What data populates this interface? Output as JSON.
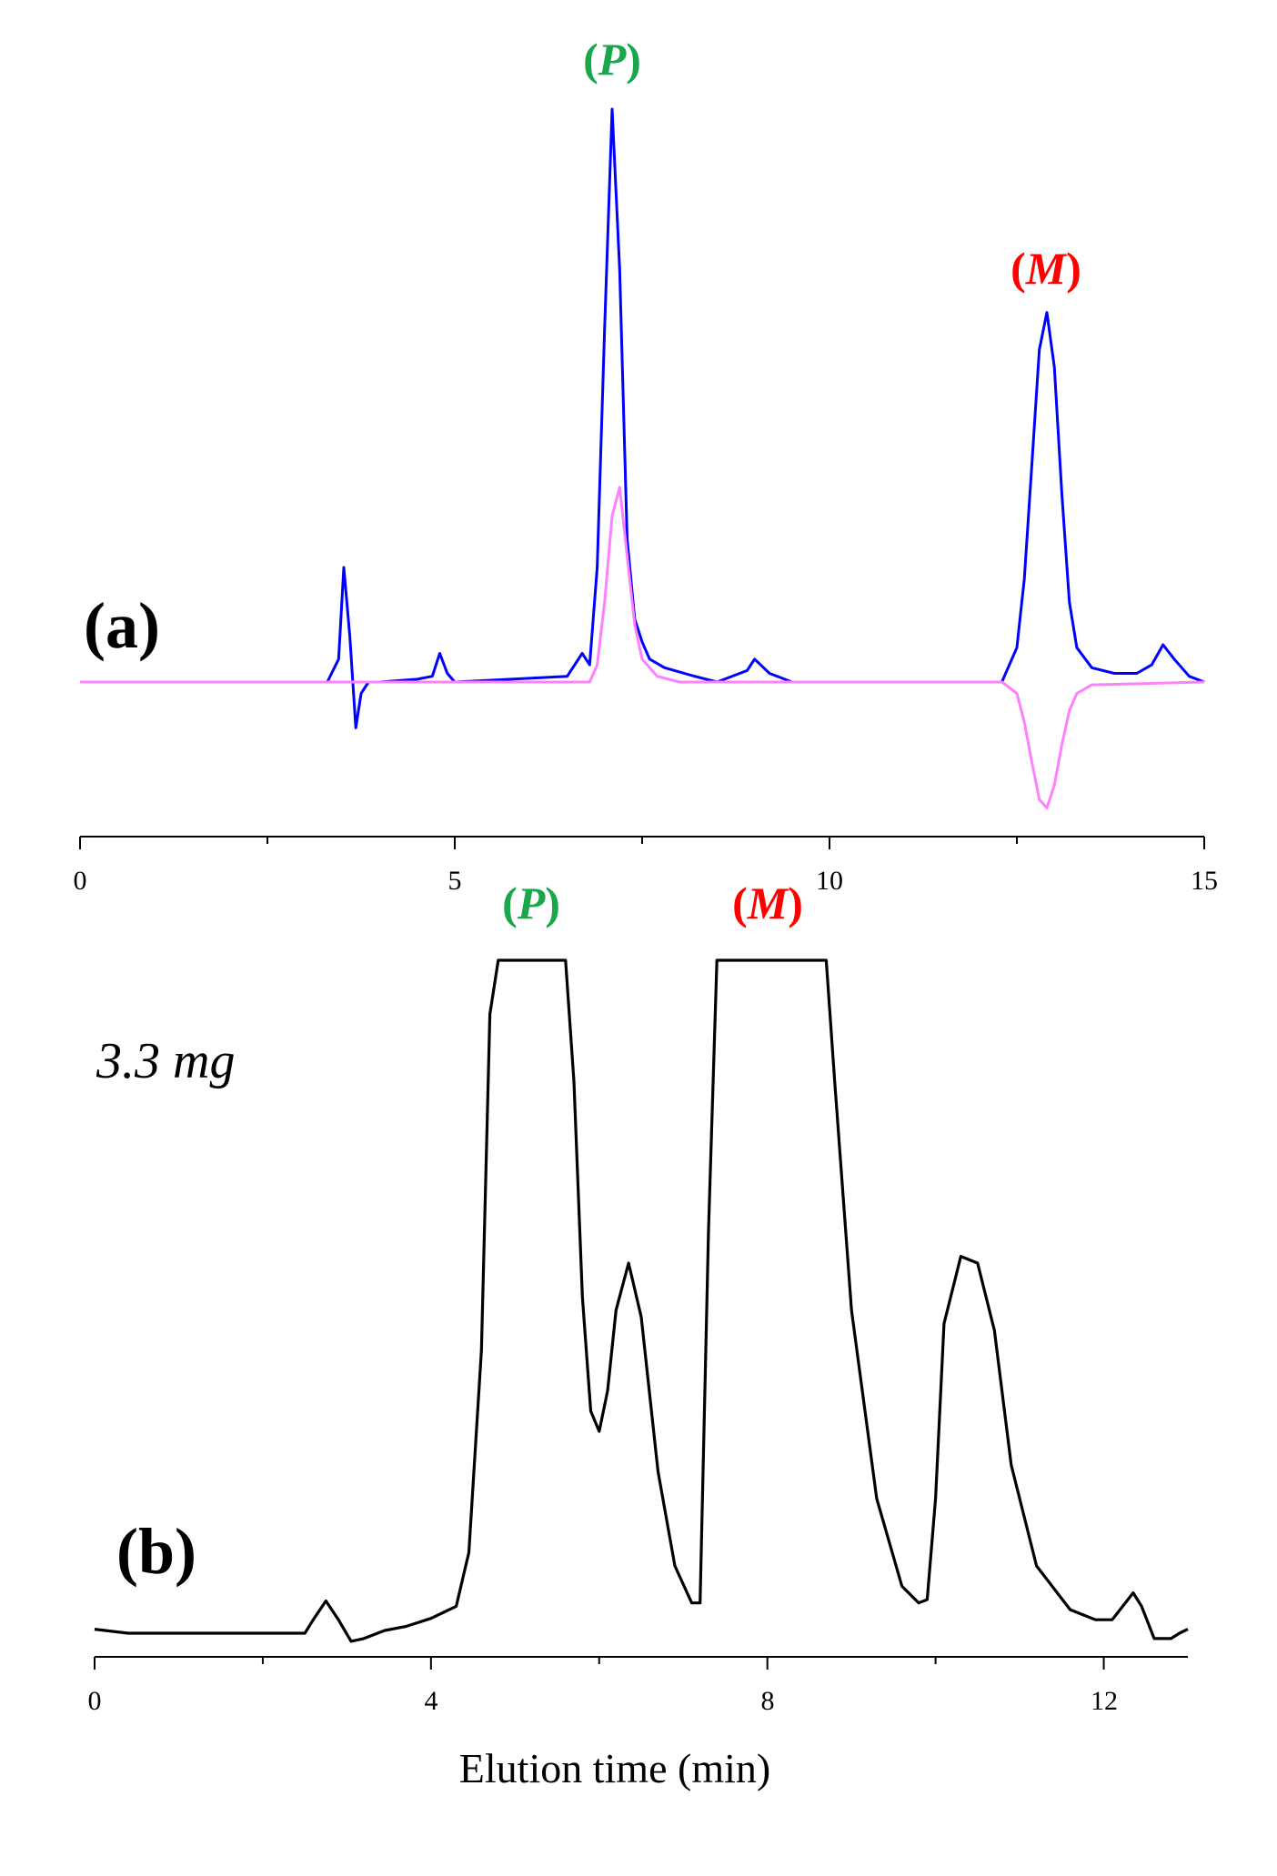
{
  "chart_data": [
    {
      "type": "line",
      "panel_label": "(a)",
      "xlim": [
        0,
        15
      ],
      "x_ticks": [
        "0",
        "5",
        "10",
        "15"
      ],
      "xlabel": "",
      "ylabel": "",
      "colors": {
        "series_1": "#0000ff",
        "series_2": "#ff80ff",
        "peak_P": "#1aa64a",
        "peak_M": "#ff0000"
      },
      "peaks": [
        {
          "open": "(",
          "letter": "P",
          "close": ")",
          "x": 7.1
        },
        {
          "open": "(",
          "letter": "M",
          "close": ")",
          "x": 12.9
        }
      ],
      "series": [
        {
          "color": "#0000ff",
          "x": [
            0,
            3.3,
            3.45,
            3.52,
            3.6,
            3.68,
            3.75,
            3.85,
            4.0,
            4.5,
            4.7,
            4.8,
            4.9,
            5.0,
            6.5,
            6.7,
            6.8,
            6.9,
            7.0,
            7.1,
            7.2,
            7.3,
            7.4,
            7.5,
            7.6,
            7.8,
            8.2,
            8.5,
            8.9,
            9.0,
            9.2,
            9.5,
            12.3,
            12.5,
            12.6,
            12.7,
            12.8,
            12.9,
            13.0,
            13.1,
            13.2,
            13.3,
            13.5,
            13.8,
            14.1,
            14.3,
            14.45,
            14.6,
            14.8,
            15.0
          ],
          "y": [
            0,
            0,
            0.04,
            0.2,
            0.08,
            -0.08,
            -0.02,
            0.0,
            0,
            0.005,
            0.01,
            0.05,
            0.015,
            0,
            0.01,
            0.05,
            0.03,
            0.2,
            0.62,
            1.0,
            0.72,
            0.25,
            0.11,
            0.07,
            0.04,
            0.025,
            0.01,
            0.0,
            0.02,
            0.04,
            0.015,
            0,
            0,
            0.06,
            0.18,
            0.38,
            0.58,
            0.645,
            0.55,
            0.33,
            0.14,
            0.06,
            0.025,
            0.015,
            0.015,
            0.03,
            0.065,
            0.04,
            0.01,
            0
          ]
        },
        {
          "color": "#ff80ff",
          "x": [
            0,
            6.8,
            6.9,
            7.0,
            7.1,
            7.2,
            7.3,
            7.4,
            7.5,
            7.7,
            8.0,
            12.3,
            12.5,
            12.6,
            12.7,
            12.8,
            12.9,
            13.0,
            13.1,
            13.2,
            13.3,
            13.5,
            15.0
          ],
          "y": [
            0,
            0,
            0.03,
            0.14,
            0.29,
            0.34,
            0.22,
            0.1,
            0.04,
            0.01,
            0,
            0,
            -0.02,
            -0.07,
            -0.14,
            -0.205,
            -0.22,
            -0.18,
            -0.11,
            -0.05,
            -0.02,
            -0.005,
            0
          ]
        }
      ]
    },
    {
      "type": "line",
      "panel_label": "(b)",
      "note": "3.3 mg",
      "xlim": [
        0,
        13
      ],
      "x_ticks": [
        "0",
        "4",
        "8",
        "12"
      ],
      "xlabel": "Elution time (min)",
      "ylabel": "",
      "colors": {
        "series_1": "#000000",
        "peak_P": "#1aa64a",
        "peak_M": "#ff0000"
      },
      "peaks": [
        {
          "open": "(",
          "letter": "P",
          "close": ")",
          "x": 5.0
        },
        {
          "open": "(",
          "letter": "M",
          "close": ")",
          "x": 8.0
        }
      ],
      "series": [
        {
          "color": "#000000",
          "x": [
            0,
            0.4,
            2.5,
            2.6,
            2.75,
            2.9,
            3.05,
            3.2,
            3.45,
            3.7,
            4.0,
            4.3,
            4.45,
            4.6,
            4.7,
            4.8,
            4.9,
            5.6,
            5.7,
            5.8,
            5.9,
            6.0,
            6.1,
            6.2,
            6.35,
            6.5,
            6.7,
            6.9,
            7.1,
            7.2,
            7.3,
            7.4,
            8.7,
            8.8,
            9.0,
            9.3,
            9.6,
            9.8,
            9.9,
            10.0,
            10.1,
            10.3,
            10.5,
            10.7,
            10.9,
            11.2,
            11.6,
            11.9,
            12.1,
            12.35,
            12.45,
            12.6,
            12.8,
            12.9,
            13.0
          ],
          "y": [
            0.006,
            0,
            0,
            0.02,
            0.048,
            0.02,
            -0.012,
            -0.008,
            0.004,
            0.01,
            0.022,
            0.04,
            0.12,
            0.42,
            0.92,
            1.0,
            1.0,
            1.0,
            0.82,
            0.5,
            0.33,
            0.3,
            0.36,
            0.48,
            0.55,
            0.47,
            0.24,
            0.1,
            0.045,
            0.045,
            0.6,
            1.0,
            1.0,
            0.82,
            0.48,
            0.2,
            0.07,
            0.045,
            0.05,
            0.2,
            0.46,
            0.56,
            0.55,
            0.45,
            0.25,
            0.1,
            0.035,
            0.02,
            0.02,
            0.06,
            0.04,
            -0.008,
            -0.008,
            0.0,
            0.006
          ]
        }
      ]
    }
  ]
}
